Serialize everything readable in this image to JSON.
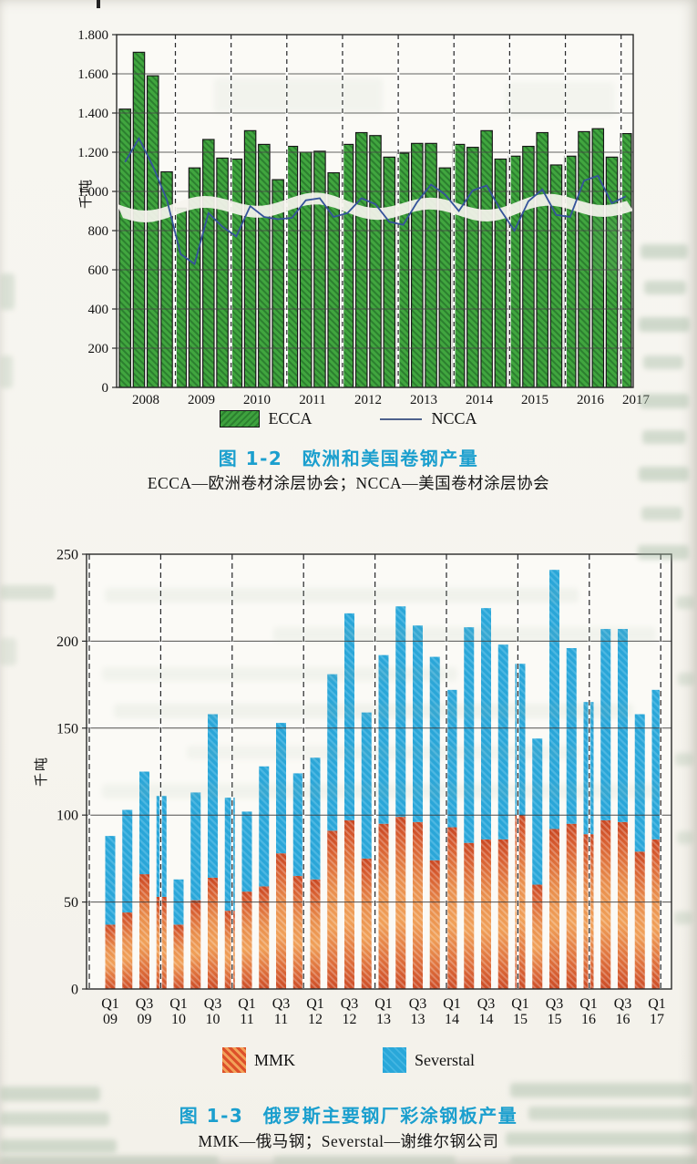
{
  "figures": [
    {
      "caption": "图 1-2　欧洲和美国卷钢产量",
      "subcaption": "ECCA—欧洲卷材涂层协会；NCCA—美国卷材涂层协会",
      "legend": {
        "ecca_label": "ECCA",
        "ncca_label": "NCCA"
      }
    },
    {
      "caption": "图 1-3　俄罗斯主要钢厂彩涂钢板产量",
      "subcaption": "MMK—俄马钢；Severstal—谢维尔钢公司",
      "legend": {
        "mmk_label": "MMK",
        "severstal_label": "Severstal"
      }
    }
  ],
  "colors": {
    "caption_blue": "#1b9fce",
    "ecca_green": "#3ea23e",
    "ecca_hatch": "#2c7f2f",
    "ncca_line": "#35539a",
    "severstal_cyan": "#29a7d9",
    "mmk_red": "#cf4b27",
    "mmk_orange": "#ef9c58",
    "grid": "#4a4a4a"
  },
  "chart_data": [
    {
      "type": "bar",
      "title": "图 1-2　欧洲和美国卷钢产量",
      "xlabel": "",
      "ylabel": "千吨",
      "ylim": [
        0,
        1800
      ],
      "ytick_step": 200,
      "ytick_labels": [
        "0",
        "200",
        "400",
        "600",
        "800",
        "1.000",
        "1.200",
        "1.400",
        "1.600",
        "1.800"
      ],
      "x_year_labels": [
        "2008",
        "2009",
        "2010",
        "2011",
        "2012",
        "2013",
        "2014",
        "2015",
        "2016",
        "2017"
      ],
      "grid": true,
      "legend_position": "bottom",
      "categories": [
        "2008Q1",
        "2008Q2",
        "2008Q3",
        "2008Q4",
        "2009Q1",
        "2009Q2",
        "2009Q3",
        "2009Q4",
        "2010Q1",
        "2010Q2",
        "2010Q3",
        "2010Q4",
        "2011Q1",
        "2011Q2",
        "2011Q3",
        "2011Q4",
        "2012Q1",
        "2012Q2",
        "2012Q3",
        "2012Q4",
        "2013Q1",
        "2013Q2",
        "2013Q3",
        "2013Q4",
        "2014Q1",
        "2014Q2",
        "2014Q3",
        "2014Q4",
        "2015Q1",
        "2015Q2",
        "2015Q3",
        "2015Q4",
        "2016Q1",
        "2016Q2",
        "2016Q3",
        "2016Q4",
        "2017Q1"
      ],
      "series": [
        {
          "name": "ECCA",
          "kind": "bar",
          "color": "#3ea23e",
          "values": [
            1420,
            1710,
            1590,
            1100,
            915,
            1120,
            1265,
            1170,
            1165,
            1310,
            1240,
            1060,
            1230,
            1200,
            1205,
            1095,
            1240,
            1300,
            1285,
            1175,
            1195,
            1245,
            1245,
            1120,
            1240,
            1225,
            1310,
            1165,
            1180,
            1230,
            1300,
            1135,
            1180,
            1305,
            1320,
            1175,
            1295
          ]
        },
        {
          "name": "NCCA",
          "kind": "line",
          "color": "#35539a",
          "values": [
            1150,
            1270,
            1130,
            960,
            680,
            630,
            890,
            820,
            770,
            925,
            870,
            858,
            865,
            955,
            965,
            870,
            890,
            965,
            935,
            845,
            830,
            945,
            1035,
            985,
            900,
            1005,
            1030,
            905,
            800,
            950,
            1010,
            880,
            870,
            1055,
            1080,
            940,
            975
          ]
        }
      ]
    },
    {
      "type": "bar",
      "stacked": true,
      "title": "图 1-3　俄罗斯主要钢厂彩涂钢板产量",
      "xlabel": "",
      "ylabel": "千吨",
      "ylim": [
        0,
        250
      ],
      "ytick_step": 50,
      "ytick_labels": [
        "0",
        "50",
        "100",
        "150",
        "200",
        "250"
      ],
      "xtick_labels": [
        [
          "Q1",
          "09"
        ],
        [
          "Q3",
          "09"
        ],
        [
          "Q1",
          "10"
        ],
        [
          "Q3",
          "10"
        ],
        [
          "Q1",
          "11"
        ],
        [
          "Q3",
          "11"
        ],
        [
          "Q1",
          "12"
        ],
        [
          "Q3",
          "12"
        ],
        [
          "Q1",
          "13"
        ],
        [
          "Q3",
          "13"
        ],
        [
          "Q1",
          "14"
        ],
        [
          "Q3",
          "14"
        ],
        [
          "Q1",
          "15"
        ],
        [
          "Q3",
          "15"
        ],
        [
          "Q1",
          "16"
        ],
        [
          "Q3",
          "16"
        ],
        [
          "Q1",
          "17"
        ]
      ],
      "grid": true,
      "legend_position": "bottom",
      "categories": [
        "Q1 09",
        "Q2 09",
        "Q3 09",
        "Q4 09",
        "Q1 10",
        "Q2 10",
        "Q3 10",
        "Q4 10",
        "Q1 11",
        "Q2 11",
        "Q3 11",
        "Q4 11",
        "Q1 12",
        "Q2 12",
        "Q3 12",
        "Q4 12",
        "Q1 13",
        "Q2 13",
        "Q3 13",
        "Q4 13",
        "Q1 14",
        "Q2 14",
        "Q3 14",
        "Q4 14",
        "Q1 15",
        "Q2 15",
        "Q3 15",
        "Q4 15",
        "Q1 16",
        "Q2 16",
        "Q3 16",
        "Q4 16",
        "Q1 17"
      ],
      "series": [
        {
          "name": "MMK",
          "kind": "bar",
          "color": "#dd5029",
          "values": [
            37,
            44,
            66,
            53,
            37,
            51,
            64,
            45,
            56,
            59,
            78,
            65,
            63,
            91,
            97,
            75,
            95,
            99,
            96,
            74,
            93,
            84,
            86,
            86,
            100,
            60,
            92,
            95,
            89,
            97,
            96,
            79,
            86
          ]
        },
        {
          "name": "Severstal",
          "kind": "bar",
          "color": "#29a7d9",
          "values": [
            51,
            59,
            59,
            58,
            26,
            62,
            94,
            65,
            46,
            69,
            75,
            59,
            70,
            90,
            119,
            84,
            97,
            121,
            113,
            117,
            79,
            124,
            133,
            112,
            87,
            84,
            149,
            101,
            76,
            110,
            111,
            79,
            86
          ]
        }
      ]
    }
  ]
}
